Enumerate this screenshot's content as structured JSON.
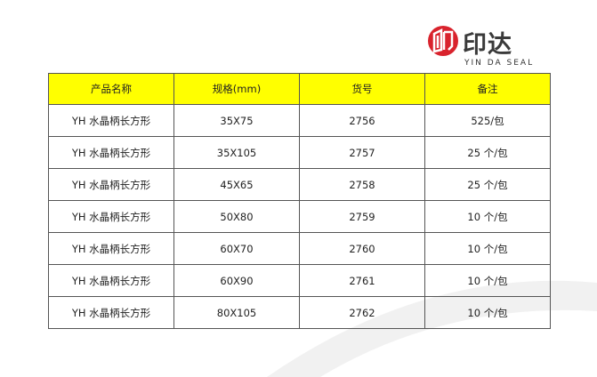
{
  "logo": {
    "text_cn": "印达",
    "text_en": "YIN DA SEAL",
    "color": "#d9232d"
  },
  "table": {
    "headers": [
      "产品名称",
      "规格(mm)",
      "货号",
      "备注"
    ],
    "rows": [
      [
        "YH 水晶柄长方形",
        "35X75",
        "2756",
        "525/包"
      ],
      [
        "YH 水晶柄长方形",
        "35X105",
        "2757",
        "25 个/包"
      ],
      [
        "YH 水晶柄长方形",
        "45X65",
        "2758",
        "25 个/包"
      ],
      [
        "YH 水晶柄长方形",
        "50X80",
        "2759",
        "10 个/包"
      ],
      [
        "YH 水晶柄长方形",
        "60X70",
        "2760",
        "10 个/包"
      ],
      [
        "YH 水晶柄长方形",
        "60X90",
        "2761",
        "10 个/包"
      ],
      [
        "YH 水晶柄长方形",
        "80X105",
        "2762",
        "10 个/包"
      ]
    ],
    "header_color": "#ffff00"
  }
}
